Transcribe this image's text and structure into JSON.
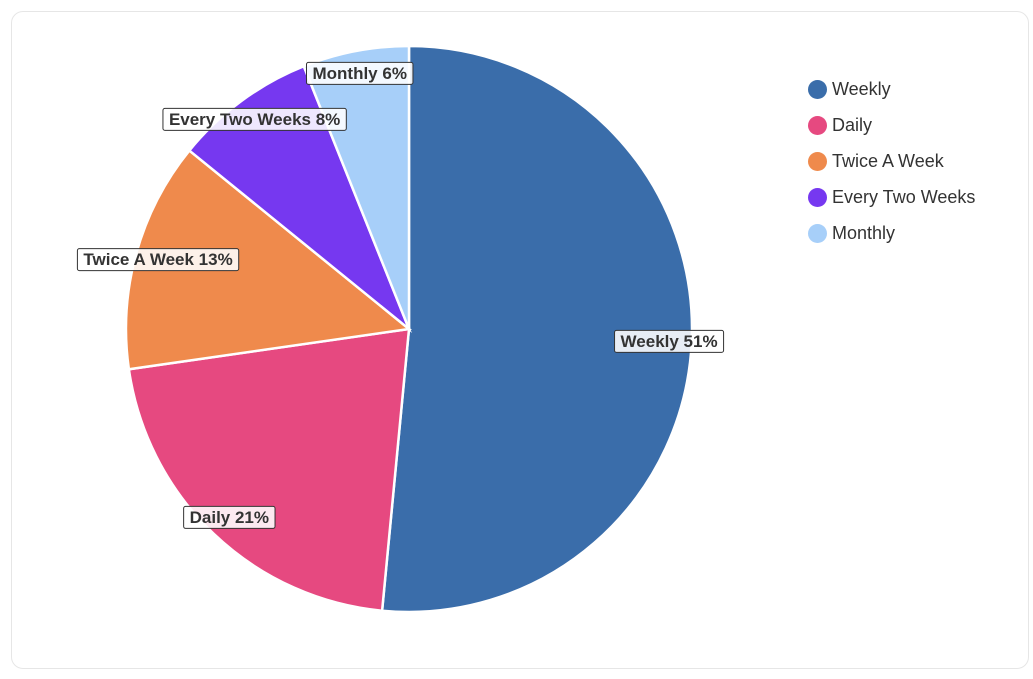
{
  "chart_data": {
    "type": "pie",
    "title": "",
    "categories": [
      "Weekly",
      "Daily",
      "Twice A Week",
      "Every Two Weeks",
      "Monthly"
    ],
    "values": [
      51,
      21,
      13,
      8,
      6
    ],
    "labels": [
      "Weekly 51%",
      "Daily 21%",
      "Twice A Week 13%",
      "Every Two Weeks 8%",
      "Monthly 6%"
    ],
    "colors": [
      "#3a6daa",
      "#e64980",
      "#ef8a4c",
      "#7638f0",
      "#a7cff9"
    ],
    "start": "top",
    "direction": "clockwise",
    "legend_position": "top-right"
  }
}
